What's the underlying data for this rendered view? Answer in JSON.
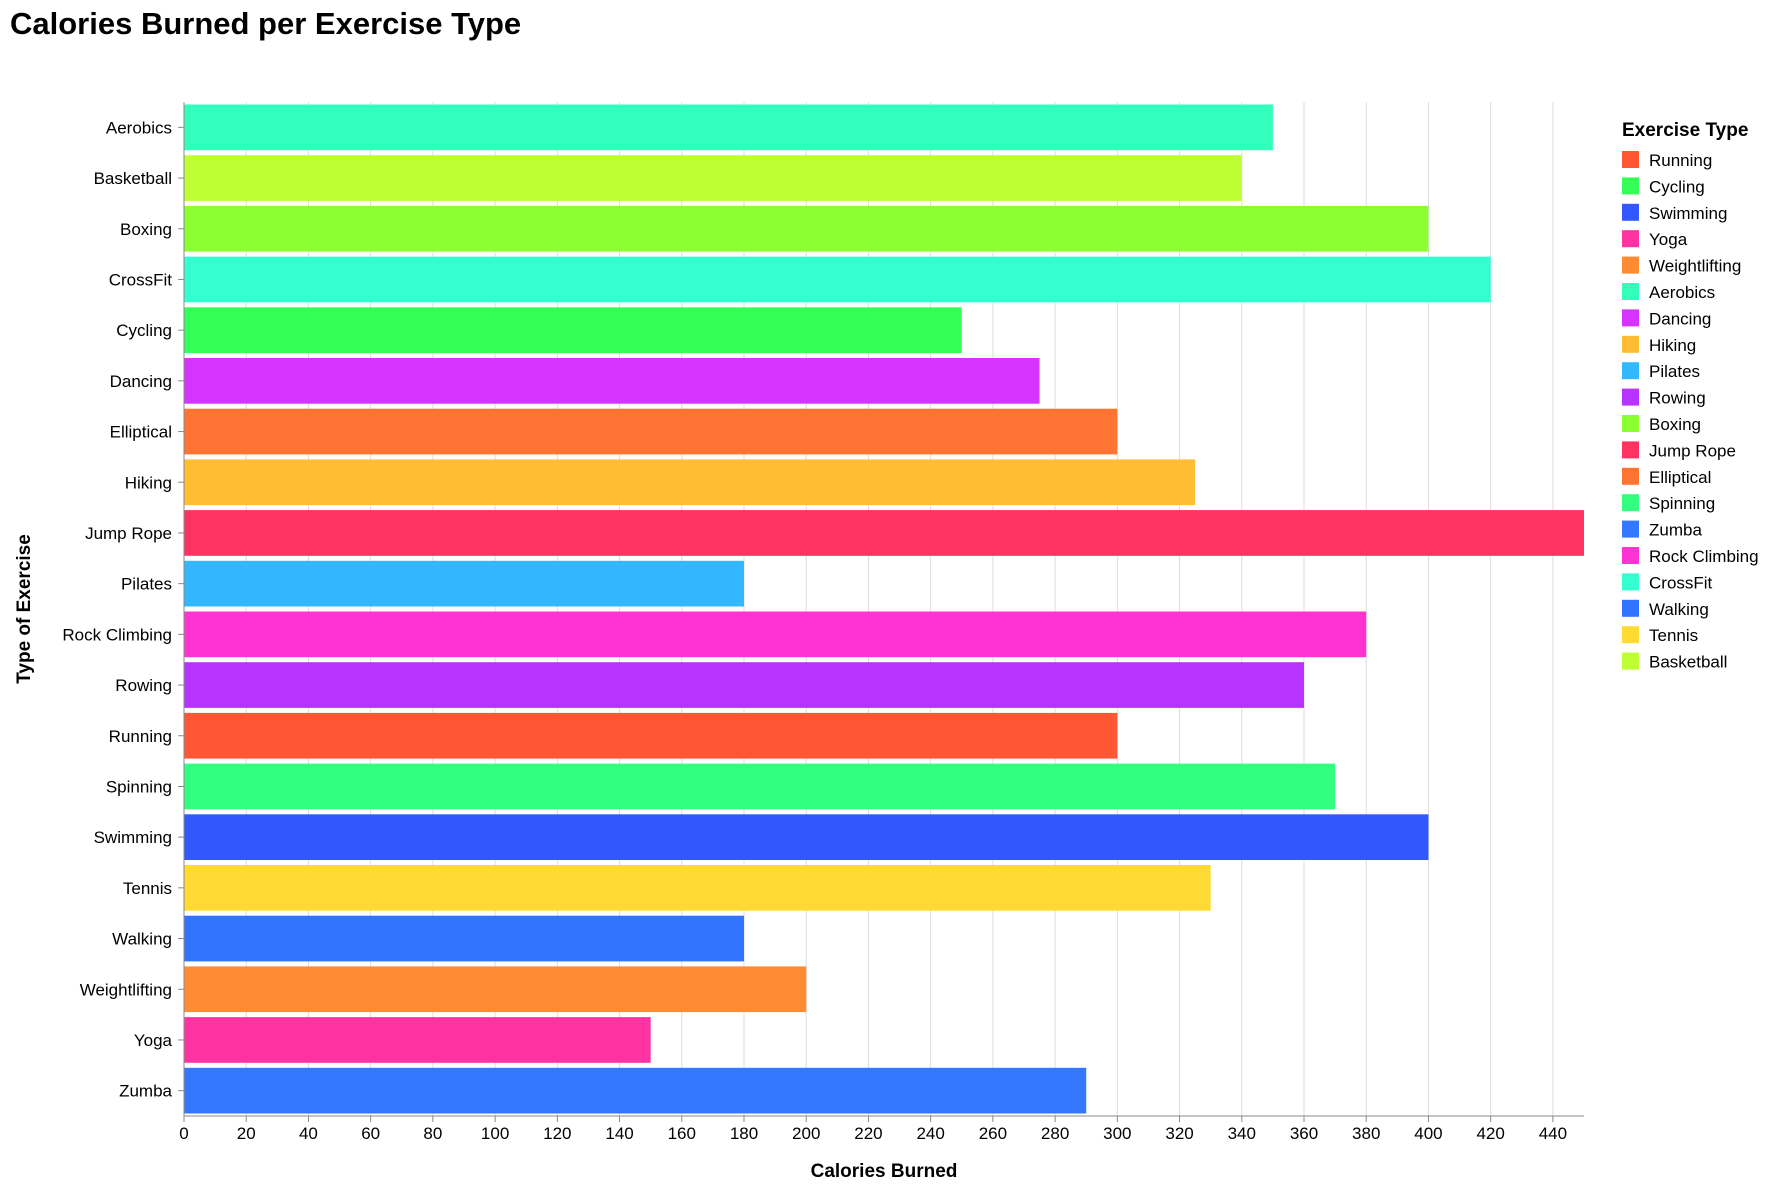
{
  "chart_data": {
    "type": "bar",
    "orientation": "horizontal",
    "title": "Calories Burned per Exercise Type",
    "xlabel": "Calories Burned",
    "ylabel": "Type of Exercise",
    "xlim": [
      0,
      450
    ],
    "x_ticks": [
      0,
      20,
      40,
      60,
      80,
      100,
      120,
      140,
      160,
      180,
      200,
      220,
      240,
      260,
      280,
      300,
      320,
      340,
      360,
      380,
      400,
      420,
      440
    ],
    "grid": true,
    "legend_position": "right",
    "legend_title": "Exercise Type",
    "categories": [
      "Aerobics",
      "Basketball",
      "Boxing",
      "CrossFit",
      "Cycling",
      "Dancing",
      "Elliptical",
      "Hiking",
      "Jump Rope",
      "Pilates",
      "Rock Climbing",
      "Rowing",
      "Running",
      "Spinning",
      "Swimming",
      "Tennis",
      "Walking",
      "Weightlifting",
      "Yoga",
      "Zumba"
    ],
    "values": [
      350,
      340,
      400,
      420,
      250,
      275,
      300,
      325,
      450,
      180,
      380,
      360,
      300,
      370,
      400,
      330,
      180,
      200,
      150,
      290
    ],
    "legend_order": [
      "Running",
      "Cycling",
      "Swimming",
      "Yoga",
      "Weightlifting",
      "Aerobics",
      "Dancing",
      "Hiking",
      "Pilates",
      "Rowing",
      "Boxing",
      "Jump Rope",
      "Elliptical",
      "Spinning",
      "Zumba",
      "Rock Climbing",
      "CrossFit",
      "Walking",
      "Tennis",
      "Basketball"
    ],
    "colors": {
      "Running": "#FF5733",
      "Cycling": "#33FF57",
      "Swimming": "#3357FF",
      "Yoga": "#FF33A1",
      "Weightlifting": "#FF8C33",
      "Aerobics": "#33FFBD",
      "Dancing": "#D633FF",
      "Hiking": "#FFBD33",
      "Pilates": "#33B8FF",
      "Rowing": "#B833FF",
      "Boxing": "#8CFF33",
      "Jump Rope": "#FF3361",
      "Elliptical": "#FF7433",
      "Spinning": "#33FF7E",
      "Zumba": "#3378FF",
      "Rock Climbing": "#FF33D4",
      "CrossFit": "#33FFD1",
      "Walking": "#3374FF",
      "Tennis": "#FFDA33",
      "Basketball": "#BDFF33"
    }
  }
}
